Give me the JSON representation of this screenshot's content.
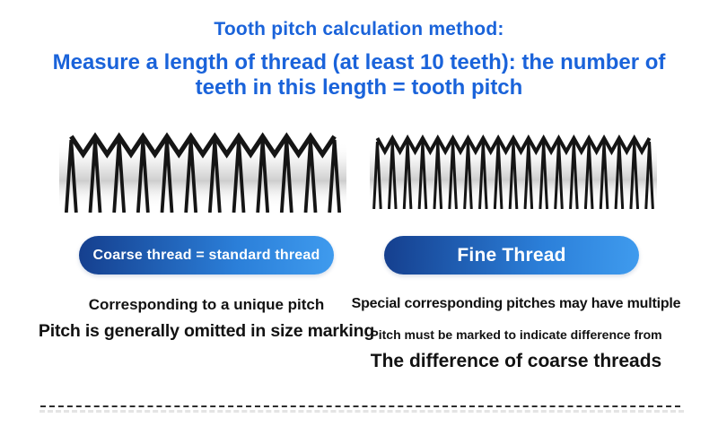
{
  "header": {
    "title": "Tooth pitch calculation method:",
    "subtitle": "Measure a length of thread (at least 10 teeth): the number of teeth in this length = tooth pitch"
  },
  "coarse": {
    "button_label": "Coarse thread = standard thread",
    "teeth_count": 12,
    "notes": {
      "line1": "Corresponding to a unique pitch",
      "line2": "Pitch is generally omitted in size marking"
    }
  },
  "fine": {
    "button_label": "Fine Thread",
    "teeth_count": 19,
    "notes": {
      "line1": "Special corresponding pitches may have multiple",
      "line2": "Pitch must be marked to indicate difference from",
      "line3": "The difference of coarse threads"
    }
  },
  "colors": {
    "heading_blue": "#1a63da",
    "pill_gradient_start": "#153f8e",
    "pill_gradient_end": "#3f9bee",
    "thread_ink": "#151515",
    "note_text": "#121212",
    "divider_dark": "#2e2e2e",
    "divider_light": "#e4e4e4"
  }
}
